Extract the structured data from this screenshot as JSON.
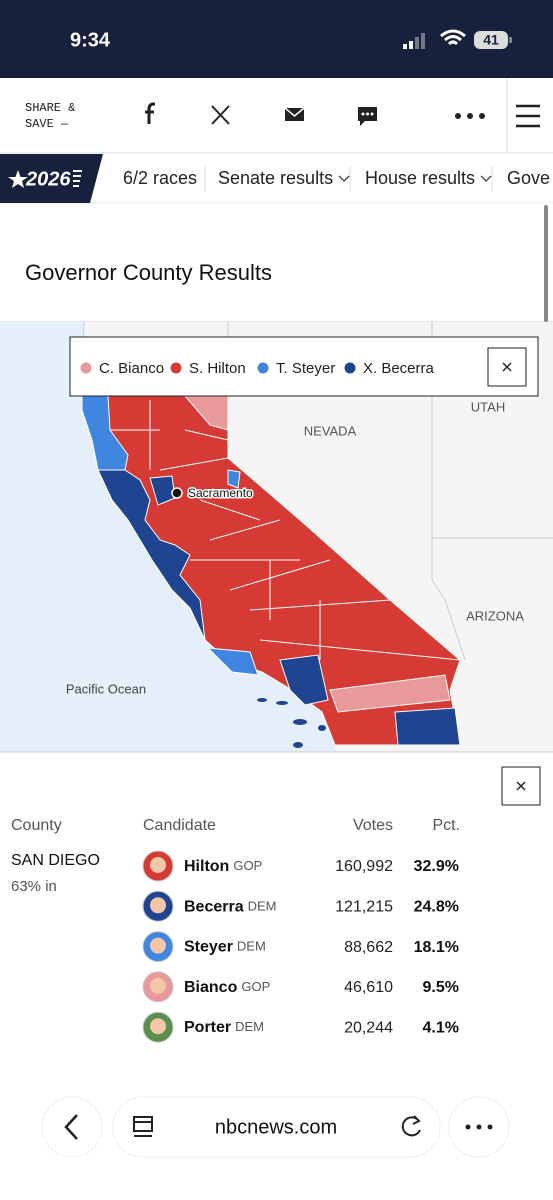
{
  "status_bar": {
    "time": "9:34",
    "battery": "41"
  },
  "share_bar": {
    "label_lines": [
      "SHARE &",
      "SAVE —"
    ]
  },
  "nav": {
    "logo": "2026",
    "items": [
      "6/2 races",
      "Senate results",
      "House results",
      "Gove"
    ]
  },
  "title": "Governor County Results",
  "map": {
    "legend": [
      {
        "name": "C. Bianco",
        "color": "#e89a9a"
      },
      {
        "name": "S. Hilton",
        "color": "#d63a34"
      },
      {
        "name": "T. Steyer",
        "color": "#3f86e0"
      },
      {
        "name": "X. Becerra",
        "color": "#1f4591"
      }
    ],
    "labels": {
      "nevada": "NEVADA",
      "utah": "UTAH",
      "arizona": "ARIZONA",
      "ocean": "Pacific Ocean",
      "city": "Sacramento"
    }
  },
  "results": {
    "headers": [
      "County",
      "Candidate",
      "Votes",
      "Pct."
    ],
    "county": "SAN DIEGO",
    "reporting": "63% in",
    "rows": [
      {
        "name": "Hilton",
        "party": "GOP",
        "votes": "160,992",
        "pct": "32.9%"
      },
      {
        "name": "Becerra",
        "party": "DEM",
        "votes": "121,215",
        "pct": "24.8%"
      },
      {
        "name": "Steyer",
        "party": "DEM",
        "votes": "88,662",
        "pct": "18.1%"
      },
      {
        "name": "Bianco",
        "party": "GOP",
        "votes": "46,610",
        "pct": "9.5%"
      },
      {
        "name": "Porter",
        "party": "DEM",
        "votes": "20,244",
        "pct": "4.1%"
      }
    ]
  },
  "browser": {
    "url": "nbcnews.com"
  }
}
